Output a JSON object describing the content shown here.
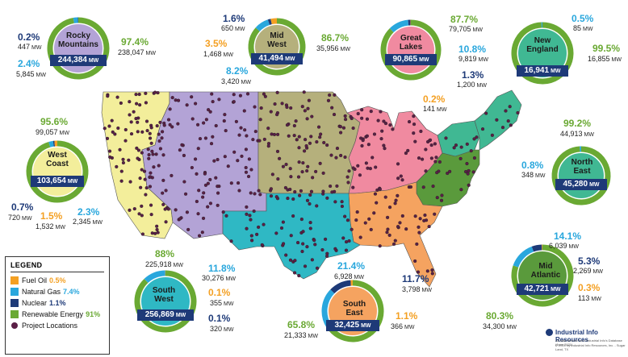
{
  "colors": {
    "renewable": "#6aa933",
    "gas": "#29a7dd",
    "nuclear": "#1e3a78",
    "fuel_oil": "#f4a023",
    "project_dot": "#5a1f46",
    "region_label_bg": "#1e3a78"
  },
  "legend": {
    "title": "LEGEND",
    "items": [
      {
        "label": "Fuel Oil",
        "value": "0.5%",
        "color": "#f4a023"
      },
      {
        "label": "Natural Gas",
        "value": "7.4%",
        "color": "#29a7dd"
      },
      {
        "label": "Nuclear",
        "value": "1.1%",
        "color": "#1e3a78"
      },
      {
        "label": "Renewable Energy",
        "value": "91%",
        "color": "#6aa933"
      }
    ],
    "projects_label": "Project Locations"
  },
  "regions": {
    "rocky_mountains": {
      "name": "Rocky\nMountains",
      "total": "244,384",
      "unit": "MW",
      "fill": "#b3a3d6",
      "mix": {
        "renewable": 97.4,
        "gas": 2.4,
        "nuclear": 0.2,
        "fuel_oil": 0
      },
      "stats": {
        "renewable_pct": "97.4%",
        "renewable_mw": "238,047",
        "gas_pct": "2.4%",
        "gas_mw": "5,845",
        "nuclear_pct": "0.2%",
        "nuclear_mw": "447"
      }
    },
    "mid_west": {
      "name": "Mid\nWest",
      "total": "41,494",
      "unit": "MW",
      "fill": "#b5b07c",
      "mix": {
        "renewable": 86.7,
        "gas": 8.2,
        "nuclear": 1.6,
        "fuel_oil": 3.5
      },
      "stats": {
        "nuclear_pct": "1.6%",
        "nuclear_mw": "650",
        "fuel_oil_pct": "3.5%",
        "fuel_oil_mw": "1,468",
        "gas_pct": "8.2%",
        "gas_mw": "3,420",
        "renewable_pct": "86.7%",
        "renewable_mw": "35,956"
      }
    },
    "great_lakes": {
      "name": "Great\nLakes",
      "total": "90,865",
      "unit": "MW",
      "fill": "#f08aa0",
      "mix": {
        "renewable": 87.7,
        "gas": 10.8,
        "nuclear": 1.3,
        "fuel_oil": 0.2
      },
      "stats": {
        "renewable_pct": "87.7%",
        "renewable_mw": "79,705",
        "gas_pct": "10.8%",
        "gas_mw": "9,819",
        "nuclear_pct": "1.3%",
        "nuclear_mw": "1,200",
        "fuel_oil_pct": "0.2%",
        "fuel_oil_mw": "141"
      }
    },
    "new_england": {
      "name": "New\nEngland",
      "total": "16,941",
      "unit": "MW",
      "fill": "#40b893",
      "mix": {
        "renewable": 99.5,
        "gas": 0.5,
        "nuclear": 0,
        "fuel_oil": 0
      },
      "stats": {
        "gas_pct": "0.5%",
        "gas_mw": "85",
        "renewable_pct": "99.5%",
        "renewable_mw": "16,855"
      }
    },
    "west_coast": {
      "name": "West\nCoast",
      "total": "103,654",
      "unit": "MW",
      "fill": "#f3ee9b",
      "mix": {
        "renewable": 95.6,
        "gas": 2.3,
        "nuclear": 0.7,
        "fuel_oil": 1.5
      },
      "stats": {
        "renewable_pct": "95.6%",
        "renewable_mw": "99,057",
        "nuclear_pct": "0.7%",
        "nuclear_mw": "720",
        "fuel_oil_pct": "1.5%",
        "fuel_oil_mw": "1,532",
        "gas_pct": "2.3%",
        "gas_mw": "2,345"
      }
    },
    "north_east": {
      "name": "North\nEast",
      "total": "45,280",
      "unit": "MW",
      "fill": "#40b893",
      "mix": {
        "renewable": 99.2,
        "gas": 0.8,
        "nuclear": 0,
        "fuel_oil": 0
      },
      "stats": {
        "renewable_pct": "99.2%",
        "renewable_mw": "44,913",
        "gas_pct": "0.8%",
        "gas_mw": "348"
      }
    },
    "south_west": {
      "name": "South\nWest",
      "total": "256,869",
      "unit": "MW",
      "fill": "#2fb8c4",
      "mix": {
        "renewable": 88,
        "gas": 11.8,
        "nuclear": 0.1,
        "fuel_oil": 0.1
      },
      "stats": {
        "renewable_pct": "88%",
        "renewable_mw": "225,918",
        "gas_pct": "11.8%",
        "gas_mw": "30,276",
        "fuel_oil_pct": "0.1%",
        "fuel_oil_mw": "355",
        "nuclear_pct": "0.1%",
        "nuclear_mw": "320"
      }
    },
    "south_east": {
      "name": "South\nEast",
      "total": "32,425",
      "unit": "MW",
      "fill": "#f5a360",
      "mix": {
        "renewable": 65.8,
        "gas": 21.4,
        "nuclear": 11.7,
        "fuel_oil": 1.1
      },
      "stats": {
        "gas_pct": "21.4%",
        "gas_mw": "6,928",
        "nuclear_pct": "11.7%",
        "nuclear_mw": "3,798",
        "renewable_pct": "65.8%",
        "renewable_mw": "21,333",
        "fuel_oil_pct": "1.1%",
        "fuel_oil_mw": "366"
      }
    },
    "mid_atlantic": {
      "name": "Mid\nAtlantic",
      "total": "42,721",
      "unit": "MW",
      "fill": "#5a9a3c",
      "mix": {
        "renewable": 80.3,
        "gas": 14.1,
        "nuclear": 5.3,
        "fuel_oil": 0.3
      },
      "stats": {
        "gas_pct": "14.1%",
        "gas_mw": "6,039",
        "nuclear_pct": "5.3%",
        "nuclear_mw": "2,269",
        "fuel_oil_pct": "0.3%",
        "fuel_oil_mw": "113",
        "renewable_pct": "80.3%",
        "renewable_mw": "34,300"
      }
    }
  },
  "logo": {
    "name": "Industrial Info Resources",
    "line1": "All data derived from Industrial Info's Database (June 2021)",
    "line2": "© 2021 by Industrial Info Resources, Inc. - Sugar Land, TX"
  }
}
